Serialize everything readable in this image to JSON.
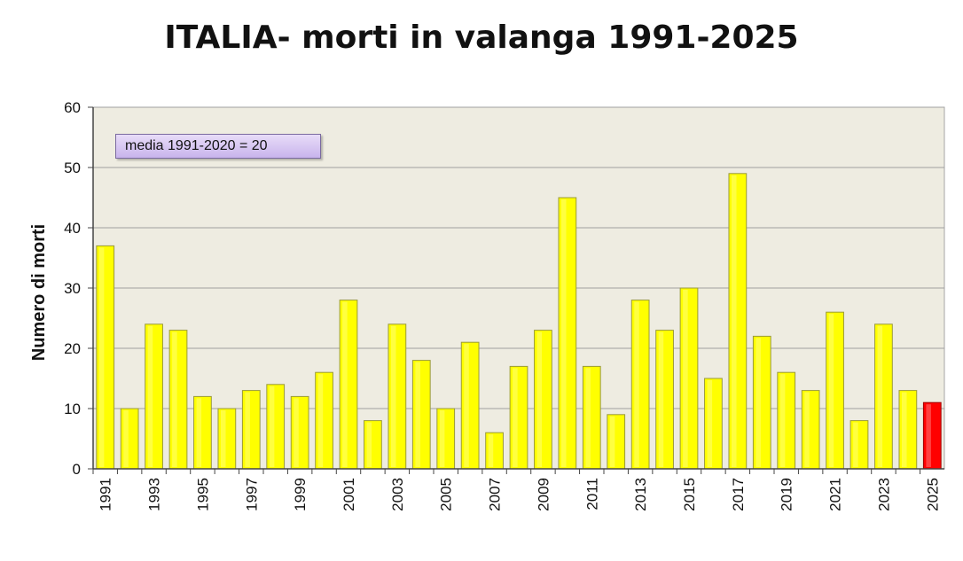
{
  "chart_data": {
    "type": "bar",
    "title": "ITALIA- morti in valanga 1991-2025",
    "ylabel": "Numero di morti",
    "xlabel": "",
    "ylim": [
      0,
      60
    ],
    "yticks": [
      0,
      10,
      20,
      30,
      40,
      50,
      60
    ],
    "categories": [
      "1991",
      "1992",
      "1993",
      "1994",
      "1995",
      "1996",
      "1997",
      "1998",
      "1999",
      "2000",
      "2001",
      "2002",
      "2003",
      "2004",
      "2005",
      "2006",
      "2007",
      "2008",
      "2009",
      "2010",
      "2011",
      "2012",
      "2013",
      "2014",
      "2015",
      "2016",
      "2017",
      "2018",
      "2019",
      "2020",
      "2021",
      "2022",
      "2023",
      "2024",
      "2025"
    ],
    "xtick_labels": [
      "1991",
      "",
      "1993",
      "",
      "1995",
      "",
      "1997",
      "",
      "1999",
      "",
      "2001",
      "",
      "2003",
      "",
      "2005",
      "",
      "2007",
      "",
      "2009",
      "",
      "2011",
      "",
      "2013",
      "",
      "2015",
      "",
      "2017",
      "",
      "2019",
      "",
      "2021",
      "",
      "2023",
      "",
      "2025"
    ],
    "values": [
      37,
      10,
      24,
      23,
      12,
      10,
      13,
      14,
      12,
      16,
      28,
      8,
      24,
      18,
      10,
      21,
      6,
      17,
      23,
      45,
      17,
      9,
      28,
      23,
      30,
      15,
      49,
      22,
      16,
      13,
      26,
      8,
      24,
      13,
      11
    ],
    "colors": {
      "bar": "#ffff00",
      "highlight": "#ff0000",
      "plot_bg": "#eeece1",
      "grid": "#a0a0a0"
    },
    "highlight_category": "2025",
    "grid": true,
    "annotation": "media 1991-2020 = 20"
  }
}
